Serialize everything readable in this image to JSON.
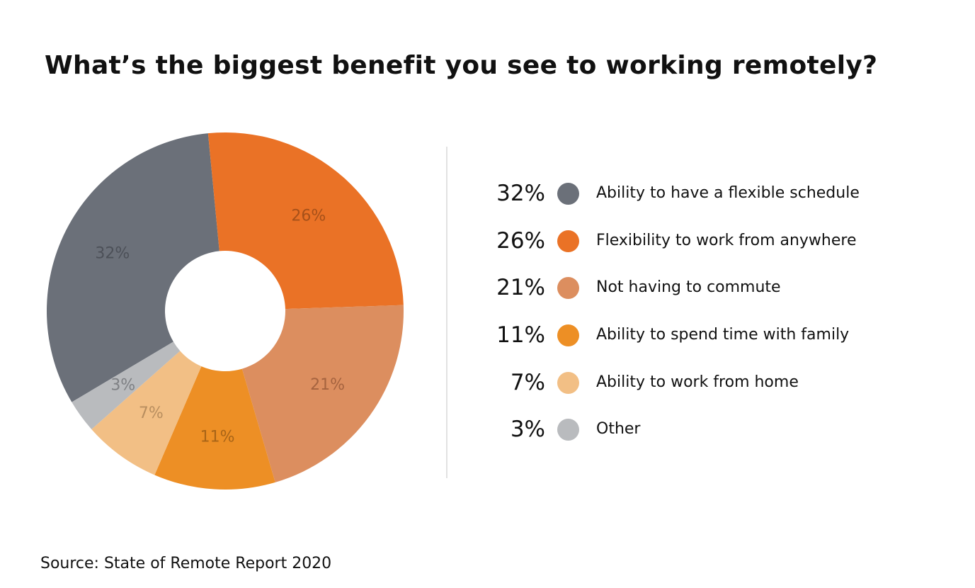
{
  "title": "What’s the biggest benefit you see to working remotely?",
  "source": "Source: State of Remote Report 2020",
  "chart_data": {
    "type": "pie",
    "donut": true,
    "title": "What’s the biggest benefit you see to working remotely?",
    "categories": [
      "Ability to have a flexible schedule",
      "Flexibility to work from anywhere",
      "Not having to commute",
      "Ability to spend time with family",
      "Ability to work from home",
      "Other"
    ],
    "values": [
      32,
      26,
      21,
      11,
      7,
      3
    ],
    "slice_labels": [
      "32%",
      "26%",
      "21%",
      "11%",
      "7%",
      "3%"
    ],
    "colors": [
      "#6b7079",
      "#ea7226",
      "#dc8e5f",
      "#ed8f25",
      "#f2bf85",
      "#b9bbbe"
    ],
    "label_colors": [
      "#4c5058",
      "#a65019",
      "#a5633f",
      "#a86417",
      "#b88e5f",
      "#7e8084"
    ],
    "legend_placement": "right",
    "unit": "%"
  },
  "legend": [
    {
      "pct": "32%",
      "label": "Ability to have a flexible schedule",
      "color": "#6b7079"
    },
    {
      "pct": "26%",
      "label": "Flexibility to work from anywhere",
      "color": "#ea7226"
    },
    {
      "pct": "21%",
      "label": "Not having to commute",
      "color": "#dc8e5f"
    },
    {
      "pct": "11%",
      "label": "Ability to spend time with family",
      "color": "#ed8f25"
    },
    {
      "pct": "7%",
      "label": "Ability to work from home",
      "color": "#f2bf85"
    },
    {
      "pct": "3%",
      "label": "Other",
      "color": "#b9bbbe"
    }
  ]
}
